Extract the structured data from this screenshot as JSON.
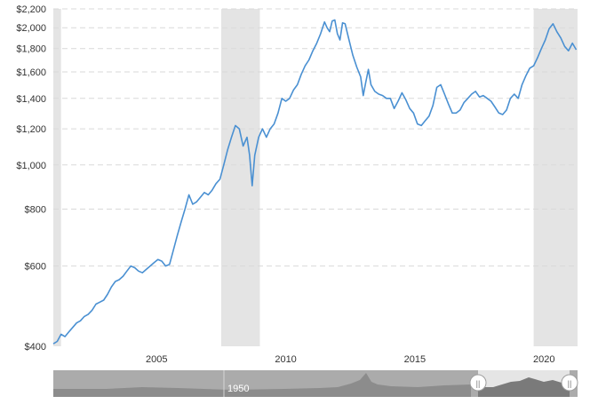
{
  "chart_data": {
    "type": "line",
    "xlabel": "",
    "ylabel": "",
    "x_ticks": [
      "2005",
      "2010",
      "2015",
      "2020"
    ],
    "y_scale": "log",
    "ylim": [
      400,
      2200
    ],
    "xlim": [
      2001.0,
      2021.3
    ],
    "y_ticks": [
      {
        "value": 400,
        "label": "$400"
      },
      {
        "value": 600,
        "label": "$600"
      },
      {
        "value": 800,
        "label": "$800"
      },
      {
        "value": 1000,
        "label": "$1,000"
      },
      {
        "value": 1200,
        "label": "$1,200"
      },
      {
        "value": 1400,
        "label": "$1,400"
      },
      {
        "value": 1600,
        "label": "$1,600"
      },
      {
        "value": 1800,
        "label": "$1,800"
      },
      {
        "value": 2000,
        "label": "$2,000"
      },
      {
        "value": 2200,
        "label": "$2,200"
      }
    ],
    "x_tick_values": [
      2005,
      2010,
      2015,
      2020
    ],
    "grid": true,
    "shaded_periods": [
      [
        2001.0,
        2001.3
      ],
      [
        2007.5,
        2009.0
      ],
      [
        2019.6,
        2021.3
      ]
    ],
    "line_color": "#4a90d2",
    "series": [
      {
        "x": [
          2001.0,
          2001.15,
          2001.3,
          2001.45,
          2001.6,
          2001.75,
          2001.9,
          2002.05,
          2002.2,
          2002.35,
          2002.5,
          2002.65,
          2002.8,
          2002.95,
          2003.1,
          2003.25,
          2003.4,
          2003.55,
          2003.7,
          2003.85,
          2004.0,
          2004.15,
          2004.3,
          2004.45,
          2004.6,
          2004.75,
          2004.9,
          2005.05,
          2005.2,
          2005.35,
          2005.5,
          2005.65,
          2005.8,
          2005.95,
          2006.1,
          2006.25,
          2006.4,
          2006.55,
          2006.7,
          2006.85,
          2007.0,
          2007.15,
          2007.3,
          2007.45,
          2007.6,
          2007.75,
          2007.9,
          2008.05,
          2008.2,
          2008.35,
          2008.5,
          2008.6,
          2008.7,
          2008.8,
          2008.95,
          2009.1,
          2009.25,
          2009.4,
          2009.55,
          2009.7,
          2009.85,
          2010.0,
          2010.15,
          2010.3,
          2010.45,
          2010.6,
          2010.75,
          2010.9,
          2011.05,
          2011.2,
          2011.35,
          2011.5,
          2011.6,
          2011.7,
          2011.8,
          2011.9,
          2012.0,
          2012.1,
          2012.2,
          2012.3,
          2012.45,
          2012.6,
          2012.75,
          2012.9,
          2013.0,
          2013.1,
          2013.2,
          2013.3,
          2013.45,
          2013.6,
          2013.75,
          2013.9,
          2014.05,
          2014.2,
          2014.35,
          2014.5,
          2014.65,
          2014.8,
          2014.95,
          2015.1,
          2015.25,
          2015.4,
          2015.55,
          2015.7,
          2015.85,
          2016.0,
          2016.15,
          2016.3,
          2016.45,
          2016.6,
          2016.75,
          2016.9,
          2017.05,
          2017.2,
          2017.35,
          2017.5,
          2017.65,
          2017.8,
          2017.95,
          2018.1,
          2018.25,
          2018.4,
          2018.55,
          2018.7,
          2018.85,
          2019.0,
          2019.15,
          2019.3,
          2019.45,
          2019.6,
          2019.75,
          2019.9,
          2020.05,
          2020.2,
          2020.35,
          2020.5,
          2020.65,
          2020.8,
          2020.95,
          2021.1,
          2021.25
        ],
        "values": [
          405,
          410,
          425,
          420,
          430,
          440,
          450,
          455,
          465,
          470,
          480,
          495,
          500,
          505,
          520,
          540,
          555,
          560,
          570,
          585,
          600,
          595,
          585,
          580,
          590,
          600,
          610,
          620,
          615,
          600,
          605,
          650,
          700,
          750,
          800,
          860,
          820,
          830,
          850,
          870,
          860,
          880,
          910,
          930,
          1000,
          1080,
          1150,
          1220,
          1200,
          1100,
          1150,
          1050,
          900,
          1050,
          1150,
          1200,
          1150,
          1200,
          1230,
          1300,
          1400,
          1380,
          1400,
          1460,
          1500,
          1580,
          1650,
          1700,
          1780,
          1850,
          1940,
          2060,
          2000,
          1960,
          2070,
          2080,
          1940,
          1880,
          2050,
          2040,
          1880,
          1740,
          1640,
          1560,
          1420,
          1520,
          1620,
          1500,
          1450,
          1430,
          1420,
          1400,
          1400,
          1330,
          1380,
          1440,
          1390,
          1330,
          1300,
          1230,
          1220,
          1250,
          1280,
          1350,
          1480,
          1500,
          1430,
          1360,
          1300,
          1300,
          1320,
          1370,
          1400,
          1430,
          1450,
          1410,
          1420,
          1400,
          1380,
          1340,
          1300,
          1290,
          1320,
          1400,
          1430,
          1400,
          1500,
          1570,
          1630,
          1650,
          1720,
          1800,
          1880,
          1990,
          2040,
          1960,
          1900,
          1820,
          1780,
          1850,
          1790
        ]
      }
    ]
  },
  "navigator": {
    "label": "1950",
    "handle_left": "||",
    "handle_right": "||"
  },
  "colors": {
    "shade": "#e4e4e4",
    "line": "#4a90d2",
    "nav_bg": "#ababab",
    "nav_fill": "#8c8c8c",
    "nav_selected": "#eeeeee"
  }
}
